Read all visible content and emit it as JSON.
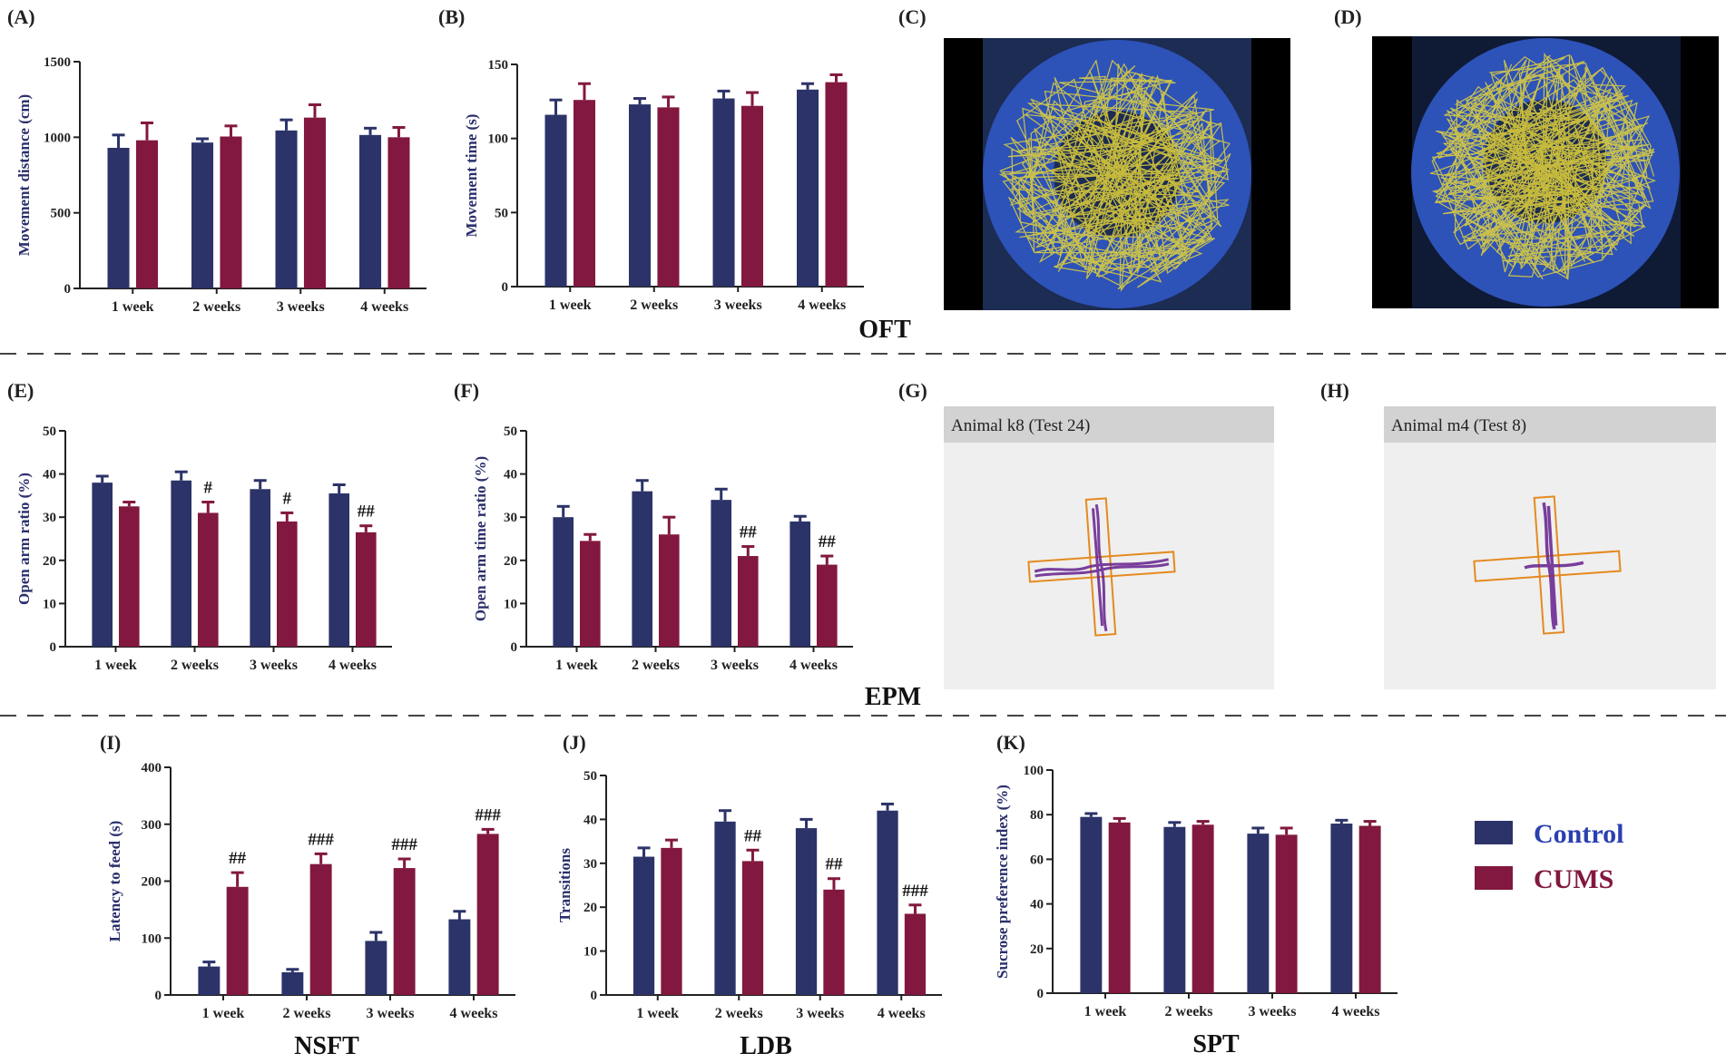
{
  "colors": {
    "control": "#2b3369",
    "cums": "#82183f",
    "arena_blue": "#2d52b8",
    "arena_dark": "#1c2c52",
    "frame": "#000000",
    "track_yellow": "#e4d33a",
    "epm_bg": "#efefef",
    "epm_title_bg": "#d2d2d2",
    "epm_arm": "#e58a1f",
    "epm_track": "#6b2a92"
  },
  "sections": [
    "OFT",
    "EPM",
    "NSFT",
    "LDB",
    "SPT"
  ],
  "legend": [
    {
      "label": "Control",
      "color": "#2b3369"
    },
    {
      "label": "CUMS",
      "color": "#82183f"
    }
  ],
  "images": [
    {
      "panel": "(C)",
      "kind": "open-field-track"
    },
    {
      "panel": "(D)",
      "kind": "open-field-track"
    },
    {
      "panel": "(G)",
      "kind": "plus-maze-track",
      "title": "Animal k8 (Test 24)"
    },
    {
      "panel": "(H)",
      "kind": "plus-maze-track",
      "title": "Animal m4 (Test 8)"
    }
  ],
  "chart_data": [
    {
      "panel": "(A)",
      "type": "bar",
      "categories": [
        "1 week",
        "2 weeks",
        "3 weeks",
        "4 weeks"
      ],
      "ylabel": "Movement distance (cm)",
      "ylim": [
        0,
        1500
      ],
      "yticks": [
        0,
        500,
        1000,
        1500
      ],
      "series": [
        {
          "name": "Control",
          "values": [
            930,
            965,
            1045,
            1015
          ],
          "errors": [
            85,
            25,
            70,
            45
          ]
        },
        {
          "name": "CUMS",
          "values": [
            980,
            1005,
            1130,
            1000
          ],
          "errors": [
            115,
            70,
            85,
            65
          ]
        }
      ],
      "annotations": [
        "",
        "",
        "",
        ""
      ]
    },
    {
      "panel": "(B)",
      "type": "bar",
      "categories": [
        "1 week",
        "2 weeks",
        "3 weeks",
        "4 weeks"
      ],
      "ylabel": "Movement time (s)",
      "ylim": [
        0,
        150
      ],
      "yticks": [
        0,
        50,
        100,
        150
      ],
      "series": [
        {
          "name": "Control",
          "values": [
            116,
            123,
            127,
            133
          ],
          "errors": [
            10,
            4,
            5,
            4
          ]
        },
        {
          "name": "CUMS",
          "values": [
            126,
            121,
            122,
            138
          ],
          "errors": [
            11,
            7,
            9,
            5
          ]
        }
      ],
      "annotations": [
        "",
        "",
        "",
        ""
      ]
    },
    {
      "panel": "(E)",
      "type": "bar",
      "categories": [
        "1 week",
        "2 weeks",
        "3 weeks",
        "4 weeks"
      ],
      "ylabel": "Open arm ratio (%)",
      "ylim": [
        0,
        50
      ],
      "yticks": [
        0,
        10,
        20,
        30,
        40,
        50
      ],
      "series": [
        {
          "name": "Control",
          "values": [
            38,
            38.5,
            36.5,
            35.5
          ],
          "errors": [
            1.5,
            2,
            2,
            2
          ]
        },
        {
          "name": "CUMS",
          "values": [
            32.5,
            31,
            29,
            26.5
          ],
          "errors": [
            1,
            2.5,
            2,
            1.5
          ]
        }
      ],
      "annotations": [
        "",
        "#",
        "#",
        "##"
      ]
    },
    {
      "panel": "(F)",
      "type": "bar",
      "categories": [
        "1 week",
        "2 weeks",
        "3 weeks",
        "4 weeks"
      ],
      "ylabel": "Open arm time ratio (%)",
      "ylim": [
        0,
        50
      ],
      "yticks": [
        0,
        10,
        20,
        30,
        40,
        50
      ],
      "series": [
        {
          "name": "Control",
          "values": [
            30,
            36,
            34,
            29
          ],
          "errors": [
            2.5,
            2.5,
            2.5,
            1.2
          ]
        },
        {
          "name": "CUMS",
          "values": [
            24.5,
            26,
            21,
            19
          ],
          "errors": [
            1.5,
            4,
            2.2,
            2
          ]
        }
      ],
      "annotations": [
        "",
        "",
        "##",
        "##"
      ]
    },
    {
      "panel": "(I)",
      "type": "bar",
      "categories": [
        "1 week",
        "2 weeks",
        "3 weeks",
        "4 weeks"
      ],
      "ylabel": "Latency to feed (s)",
      "ylim": [
        0,
        400
      ],
      "yticks": [
        0,
        100,
        200,
        300,
        400
      ],
      "series": [
        {
          "name": "Control",
          "values": [
            50,
            40,
            95,
            133
          ],
          "errors": [
            8,
            5,
            15,
            14
          ]
        },
        {
          "name": "CUMS",
          "values": [
            190,
            230,
            223,
            283
          ],
          "errors": [
            25,
            18,
            16,
            8
          ]
        }
      ],
      "annotations": [
        "##",
        "###",
        "###",
        "###"
      ]
    },
    {
      "panel": "(J)",
      "type": "bar",
      "categories": [
        "1 week",
        "2 weeks",
        "3 weeks",
        "4 weeks"
      ],
      "ylabel": "Transitions",
      "ylim": [
        0,
        50
      ],
      "yticks": [
        0,
        10,
        20,
        30,
        40,
        50
      ],
      "series": [
        {
          "name": "Control",
          "values": [
            31.5,
            39.5,
            38,
            42
          ],
          "errors": [
            2,
            2.5,
            2,
            1.5
          ]
        },
        {
          "name": "CUMS",
          "values": [
            33.5,
            30.5,
            24,
            18.5
          ],
          "errors": [
            1.8,
            2.5,
            2.5,
            2
          ]
        }
      ],
      "annotations": [
        "",
        "##",
        "##",
        "###"
      ]
    },
    {
      "panel": "(K)",
      "type": "bar",
      "categories": [
        "1 week",
        "2 weeks",
        "3 weeks",
        "4 weeks"
      ],
      "ylabel": "Sucrose preference index (%)",
      "ylim": [
        0,
        100
      ],
      "yticks": [
        0,
        20,
        40,
        60,
        80,
        100
      ],
      "series": [
        {
          "name": "Control",
          "values": [
            79,
            74.5,
            71.5,
            76
          ],
          "errors": [
            1.5,
            2,
            2.5,
            1.5
          ]
        },
        {
          "name": "CUMS",
          "values": [
            76.5,
            75.5,
            71,
            75
          ],
          "errors": [
            1.8,
            1.5,
            3,
            2
          ]
        }
      ],
      "annotations": [
        "",
        "",
        "",
        ""
      ]
    }
  ]
}
